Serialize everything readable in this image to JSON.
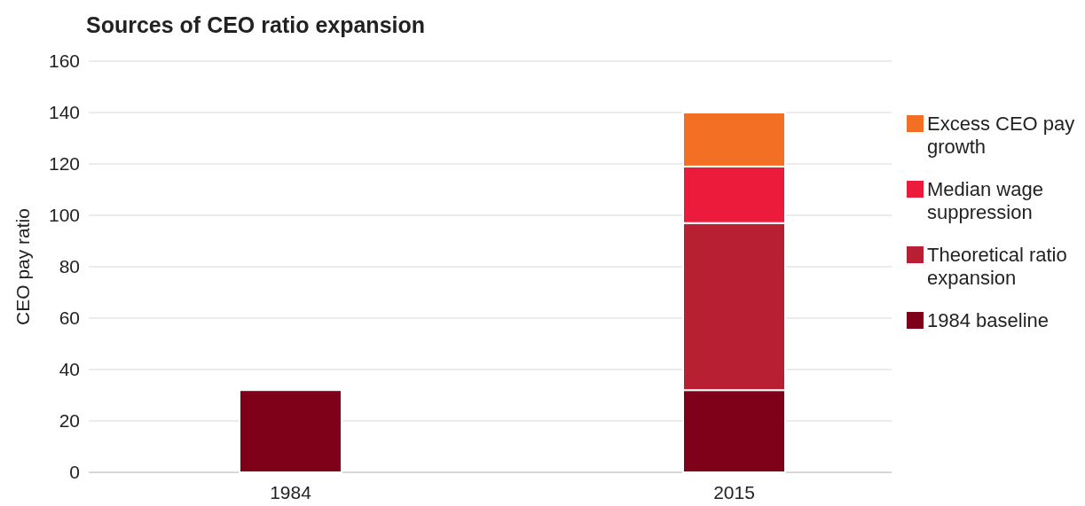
{
  "chart_data": {
    "type": "bar",
    "title": "Sources of CEO ratio expansion",
    "ylabel": "CEO pay ratio",
    "categories": [
      "1984",
      "2015"
    ],
    "stacked": true,
    "series": [
      {
        "name": "1984 baseline",
        "color": "#7f0019",
        "values": [
          32,
          32
        ]
      },
      {
        "name": "Theoretical ratio expansion",
        "color": "#b81f33",
        "values": [
          null,
          65
        ]
      },
      {
        "name": "Median wage suppression",
        "color": "#ec1b3b",
        "values": [
          null,
          22
        ]
      },
      {
        "name": "Excess CEO pay growth",
        "color": "#f26f24",
        "values": [
          null,
          21
        ]
      }
    ],
    "ylim": [
      0,
      160
    ],
    "yticks": [
      0,
      20,
      40,
      60,
      80,
      100,
      120,
      140,
      160
    ],
    "grid": "y",
    "legend": "right"
  }
}
